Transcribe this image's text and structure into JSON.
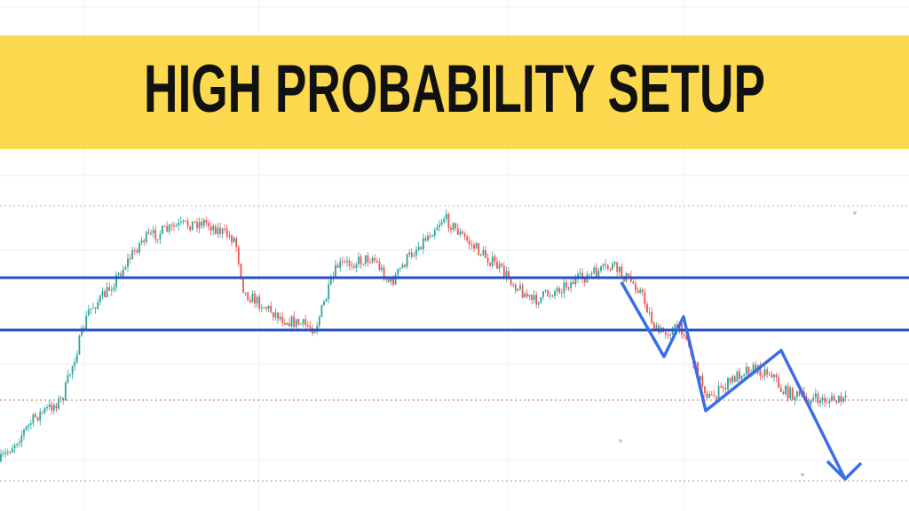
{
  "banner": {
    "title": "HIGH PROBABILITY SETUP"
  }
}
